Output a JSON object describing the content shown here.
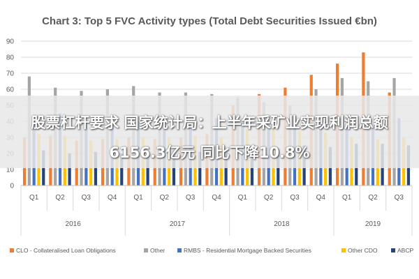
{
  "chart_data": {
    "type": "bar",
    "title": "Chart 3: Top 5 FVC Activity types (Total Debt Securities Issued €bn)",
    "ylim": [
      0,
      90
    ],
    "yticks": [
      0,
      10,
      20,
      30,
      40,
      50,
      60,
      70,
      80,
      90
    ],
    "grid": true,
    "legend_position": "bottom",
    "categories": [
      "Q1",
      "Q2",
      "Q3",
      "Q4",
      "Q1",
      "Q2",
      "Q3",
      "Q4",
      "Q1",
      "Q2",
      "Q3",
      "Q4",
      "Q1",
      "Q2",
      "Q3"
    ],
    "year_groups": [
      {
        "label": "2016",
        "count": 4
      },
      {
        "label": "2017",
        "count": 4
      },
      {
        "label": "2018",
        "count": 4
      },
      {
        "label": "2019",
        "count": 3
      }
    ],
    "series": [
      {
        "name": "CLO - Collateralised Loan Obligations",
        "color": "#ed7d31",
        "values": [
          30,
          31,
          28,
          29,
          30,
          29,
          30,
          32,
          50,
          57,
          61,
          69,
          76,
          83,
          58
        ]
      },
      {
        "name": "Other",
        "color": "#a5a5a5",
        "values": [
          68,
          61,
          59,
          60,
          62,
          58,
          58,
          57,
          55,
          52,
          50,
          60,
          67,
          65,
          67
        ]
      },
      {
        "name": "RMBS - Residential Mortgage Backed Securities",
        "color": "#4472c4",
        "values": [
          40,
          45,
          38,
          41,
          40,
          42,
          40,
          42,
          42,
          43,
          44,
          40,
          38,
          36,
          42
        ]
      },
      {
        "name": "Other CDO",
        "color": "#ffc000",
        "values": [
          32,
          31,
          28,
          29,
          30,
          30,
          31,
          30,
          35,
          36,
          34,
          33,
          30,
          29,
          30
        ]
      },
      {
        "name": "ABCP",
        "color": "#264478",
        "values": [
          22,
          20,
          21,
          20,
          21,
          22,
          21,
          22,
          24,
          23,
          25,
          24,
          26,
          26,
          25
        ]
      }
    ]
  },
  "overlay": {
    "line1": "股票杠杆要求 国家统计局：上半年采矿业实现利润总额",
    "line2": "6156.3亿元 同比下降10.8%"
  }
}
